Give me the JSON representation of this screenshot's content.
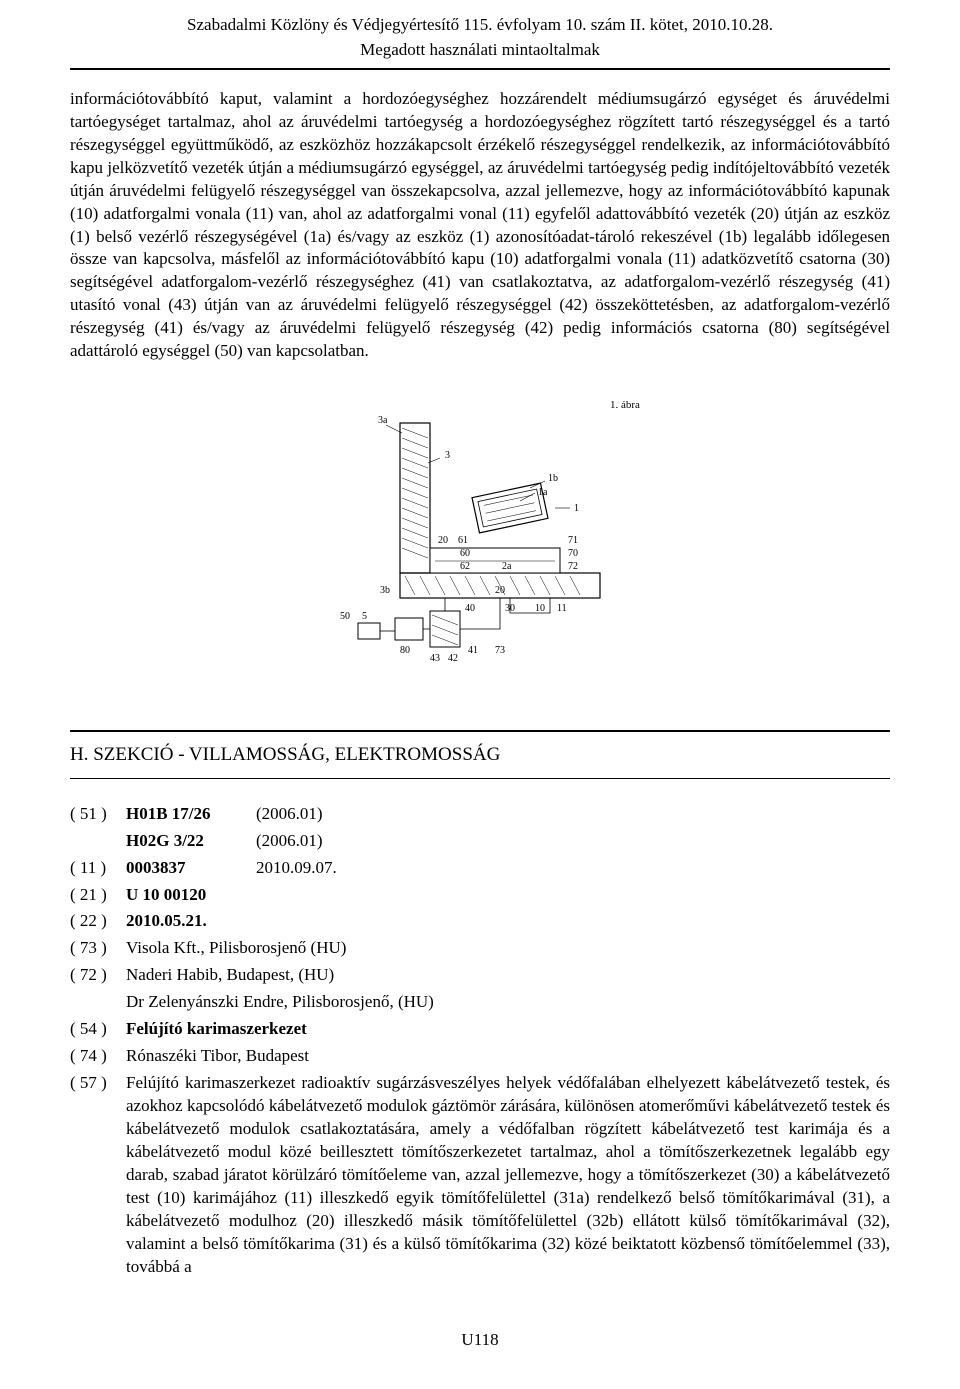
{
  "header": {
    "line1": "Szabadalmi Közlöny és Védjegyértesítő 115. évfolyam 10. szám II. kötet, 2010.10.28.",
    "line2": "Megadott használati mintaoltalmak"
  },
  "body_text": "információtovábbító kaput, valamint a hordozóegységhez hozzárendelt médiumsugárzó egységet és áruvédelmi tartóegységet tartalmaz, ahol az áruvédelmi tartóegység a hordozóegységhez rögzített tartó részegységgel és a tartó részegységgel együttműködő, az eszközhöz hozzákapcsolt érzékelő részegységgel rendelkezik, az információtovábbító kapu jelközvetítő vezeték útján a médiumsugárzó egységgel, az áruvédelmi tartóegység pedig indítójeltovábbító vezeték útján áruvédelmi felügyelő részegységgel van összekapcsolva, azzal jellemezve, hogy az információtovábbító kapunak (10) adatforgalmi vonala (11) van, ahol az adatforgalmi vonal (11) egyfelől adattovábbító vezeték (20) útján az eszköz (1) belső vezérlő részegységével (1a) és/vagy az eszköz (1) azonosítóadat-tároló rekeszével (1b) legalább időlegesen össze van kapcsolva, másfelől az információtovábbító kapu (10) adatforgalmi vonala (11) adatközvetítő csatorna (30) segítségével adatforgalom-vezérlő részegységhez (41) van csatlakoztatva, az adatforgalom-vezérlő részegység (41) utasító vonal (43) útján van az áruvédelmi felügyelő részegységgel (42) összeköttetésben, az adatforgalom-vezérlő részegység (41) és/vagy az áruvédelmi felügyelő részegység (42) pedig információs csatorna (80) segítségével adattároló egységgel (50) van kapcsolatban.",
  "figure": {
    "caption": "1. ábra",
    "labels": [
      "3a",
      "3",
      "1b",
      "1a",
      "1",
      "20",
      "61",
      "71",
      "60",
      "70",
      "62",
      "2a",
      "72",
      "3b",
      "20",
      "50",
      "5",
      "80",
      "40",
      "30",
      "10",
      "11",
      "43",
      "42",
      "41",
      "73"
    ]
  },
  "section": {
    "title": "H. SZEKCIÓ - VILLAMOSSÁG, ELEKTROMOSSÁG"
  },
  "entries": [
    {
      "code": "( 51 )",
      "main": "H01B 17/26",
      "main_bold": true,
      "right": "(2006.01)"
    },
    {
      "code": "",
      "main": "H02G 3/22",
      "main_bold": true,
      "right": "(2006.01)"
    },
    {
      "code": "( 11 )",
      "main": "0003837",
      "main_bold": true,
      "right": "2010.09.07."
    },
    {
      "code": "( 21 )",
      "main": "U 10 00120",
      "main_bold": true,
      "right": ""
    },
    {
      "code": "( 22 )",
      "main": "2010.05.21.",
      "main_bold": true,
      "right": ""
    },
    {
      "code": "( 73 )",
      "text": "Visola Kft., Pilisborosjenő (HU)"
    },
    {
      "code": "( 72 )",
      "text": "Naderi Habib, Budapest, (HU)"
    },
    {
      "code": "",
      "text": "Dr Zelenyánszki Endre, Pilisborosjenő, (HU)"
    },
    {
      "code": "( 54 )",
      "text": "Felújító karimaszerkezet",
      "bold": true
    },
    {
      "code": "( 74 )",
      "text": "Rónaszéki Tibor, Budapest"
    },
    {
      "code": "( 57 )",
      "text": "Felújító karimaszerkezet radioaktív sugárzásveszélyes helyek védőfalában elhelyezett kábelátvezető testek, és azokhoz kapcsolódó kábelátvezető modulok gáztömör zárására, különösen atomerőművi kábelátvezető testek és kábelátvezető modulok csatlakoztatására, amely a védőfalban rögzített kábelátvezető test karimája és a kábelátvezető modul közé beillesztett tömítőszerkezetet tartalmaz, ahol a tömítőszerkezetnek legalább egy darab, szabad járatot körülzáró tömítőeleme van, azzal jellemezve, hogy a tömítőszerkezet (30) a kábelátvezető test (10) karimájához (11) illeszkedő egyik tömítőfelülettel (31a) rendelkező belső tömítőkarimával (31), a kábelátvezető modulhoz (20) illeszkedő másik tömítőfelülettel (32b) ellátott külső tömítőkarimával (32), valamint a belső tömítőkarima (31) és a külső tömítőkarima (32) közé beiktatott közbenső tömítőelemmel (33), továbbá a"
    }
  ],
  "footer": "U118"
}
